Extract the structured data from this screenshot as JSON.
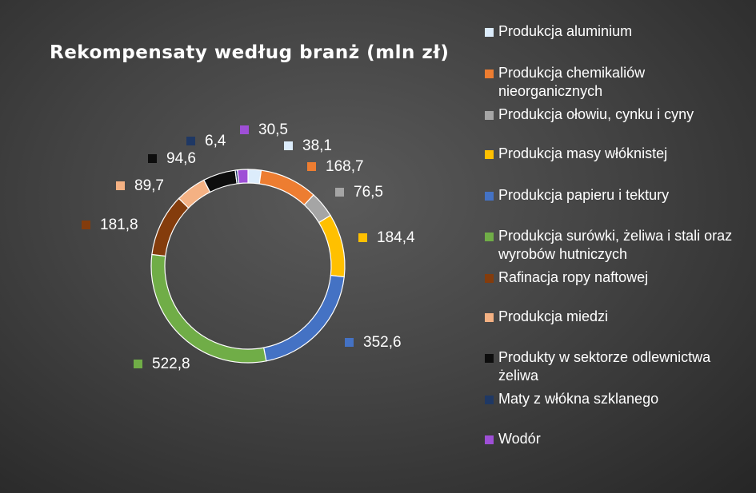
{
  "chart_data": {
    "type": "pie",
    "variant": "doughnut",
    "title": "Rekompensaty według branż (mln zł)",
    "legend_position": "right",
    "categories": [
      "Produkcja aluminium",
      "Produkcja chemikaliów nieorganicznych",
      "Produkcja ołowiu, cynku i cyny",
      "Produkcja masy włóknistej",
      "Produkcja papieru i tektury",
      "Produkcja surówki, żeliwa i stali oraz wyrobów hutniczych",
      "Rafinacja ropy naftowej",
      "Produkcja miedzi",
      "Produkty w sektorze odlewnictwa żeliwa",
      "Maty z włókna szklanego",
      "Wodór"
    ],
    "values": [
      38.1,
      168.7,
      76.5,
      184.4,
      352.6,
      522.8,
      181.8,
      89.7,
      94.6,
      6.4,
      30.5
    ],
    "value_labels": [
      "38,1",
      "168,7",
      "76,5",
      "184,4",
      "352,6",
      "522,8",
      "181,8",
      "89,7",
      "94,6",
      "6,4",
      "30,5"
    ],
    "colors": [
      "#dcecfb",
      "#ed7d31",
      "#a5a5a5",
      "#ffc000",
      "#4472c4",
      "#70ad47",
      "#843c0c",
      "#f4b183",
      "#0d0d0d",
      "#1f3864",
      "#9e4fd6"
    ]
  }
}
